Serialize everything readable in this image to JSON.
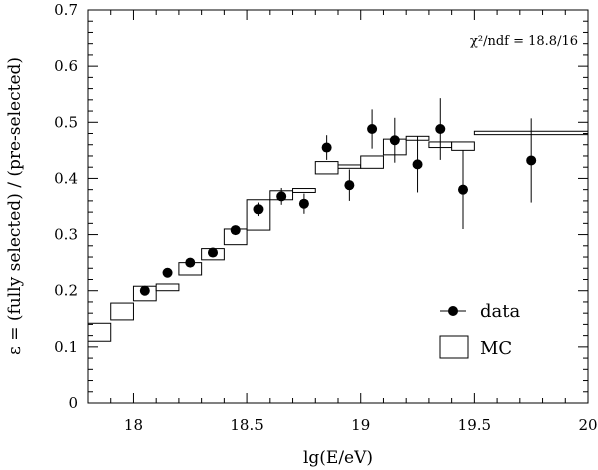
{
  "chart_data": {
    "type": "scatter",
    "xlabel": "lg(E/eV)",
    "ylabel": "ε = (fully selected) / (pre-selected)",
    "xlim": [
      17.8,
      20.0
    ],
    "ylim": [
      0.0,
      0.7
    ],
    "xticks": [
      "18",
      "18.5",
      "19",
      "19.5",
      "20"
    ],
    "xtick_values": [
      18,
      18.5,
      19,
      19.5,
      20
    ],
    "yticks": [
      "0",
      "0.1",
      "0.2",
      "0.3",
      "0.4",
      "0.5",
      "0.6",
      "0.7"
    ],
    "ytick_values": [
      0,
      0.1,
      0.2,
      0.3,
      0.4,
      0.5,
      0.6,
      0.7
    ],
    "annotation": "χ²/ndf = 18.8/16",
    "legend": {
      "placement": "bottom-right",
      "data_label": "data",
      "mc_label": "MC"
    },
    "series": [
      {
        "name": "data",
        "kind": "points-with-errors",
        "x": [
          18.05,
          18.15,
          18.25,
          18.35,
          18.45,
          18.55,
          18.65,
          18.75,
          18.85,
          18.95,
          19.05,
          19.15,
          19.25,
          19.35,
          19.45,
          19.75
        ],
        "y": [
          0.2,
          0.232,
          0.25,
          0.268,
          0.308,
          0.345,
          0.368,
          0.355,
          0.455,
          0.388,
          0.488,
          0.468,
          0.425,
          0.488,
          0.38,
          0.432
        ],
        "yerr": [
          0.005,
          0.006,
          0.006,
          0.007,
          0.008,
          0.012,
          0.015,
          0.018,
          0.022,
          0.028,
          0.035,
          0.04,
          0.05,
          0.055,
          0.07,
          0.075
        ]
      },
      {
        "name": "MC",
        "kind": "boxes",
        "x_low": [
          17.8,
          17.9,
          18.0,
          18.1,
          18.2,
          18.3,
          18.4,
          18.5,
          18.6,
          18.7,
          18.8,
          18.9,
          19.0,
          19.1,
          19.2,
          19.3,
          19.4,
          19.5
        ],
        "x_high": [
          17.9,
          18.0,
          18.1,
          18.2,
          18.3,
          18.4,
          18.5,
          18.6,
          18.7,
          18.8,
          18.9,
          19.0,
          19.1,
          19.2,
          19.3,
          19.4,
          19.5,
          20.0
        ],
        "y_low": [
          0.11,
          0.148,
          0.182,
          0.2,
          0.228,
          0.255,
          0.282,
          0.308,
          0.362,
          0.375,
          0.408,
          0.418,
          0.418,
          0.442,
          0.468,
          0.455,
          0.45,
          0.478
        ],
        "y_high": [
          0.142,
          0.178,
          0.208,
          0.212,
          0.25,
          0.275,
          0.31,
          0.362,
          0.378,
          0.382,
          0.43,
          0.424,
          0.44,
          0.47,
          0.475,
          0.465,
          0.465,
          0.484
        ]
      }
    ]
  }
}
